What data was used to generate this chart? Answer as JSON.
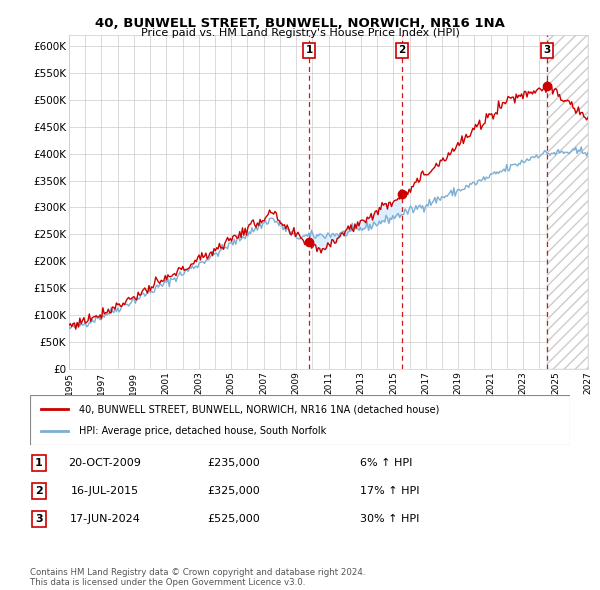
{
  "title": "40, BUNWELL STREET, BUNWELL, NORWICH, NR16 1NA",
  "subtitle": "Price paid vs. HM Land Registry's House Price Index (HPI)",
  "ylim": [
    0,
    620000
  ],
  "yticks": [
    0,
    50000,
    100000,
    150000,
    200000,
    250000,
    300000,
    350000,
    400000,
    450000,
    500000,
    550000,
    600000
  ],
  "ytick_labels": [
    "£0",
    "£50K",
    "£100K",
    "£150K",
    "£200K",
    "£250K",
    "£300K",
    "£350K",
    "£400K",
    "£450K",
    "£500K",
    "£550K",
    "£600K"
  ],
  "legend_line1": "40, BUNWELL STREET, BUNWELL, NORWICH, NR16 1NA (detached house)",
  "legend_line2": "HPI: Average price, detached house, South Norfolk",
  "sale1_date": "20-OCT-2009",
  "sale1_price": "£235,000",
  "sale1_hpi": "6% ↑ HPI",
  "sale1_x": 2009.8,
  "sale1_y": 235000,
  "sale2_date": "16-JUL-2015",
  "sale2_price": "£325,000",
  "sale2_hpi": "17% ↑ HPI",
  "sale2_x": 2015.54,
  "sale2_y": 325000,
  "sale3_date": "17-JUN-2024",
  "sale3_price": "£525,000",
  "sale3_hpi": "30% ↑ HPI",
  "sale3_x": 2024.46,
  "sale3_y": 525000,
  "red_color": "#cc0000",
  "blue_color": "#7bafd4",
  "fill_color": "#ddeeff",
  "copyright_text": "Contains HM Land Registry data © Crown copyright and database right 2024.\nThis data is licensed under the Open Government Licence v3.0.",
  "xmin": 1995,
  "xmax": 2027
}
